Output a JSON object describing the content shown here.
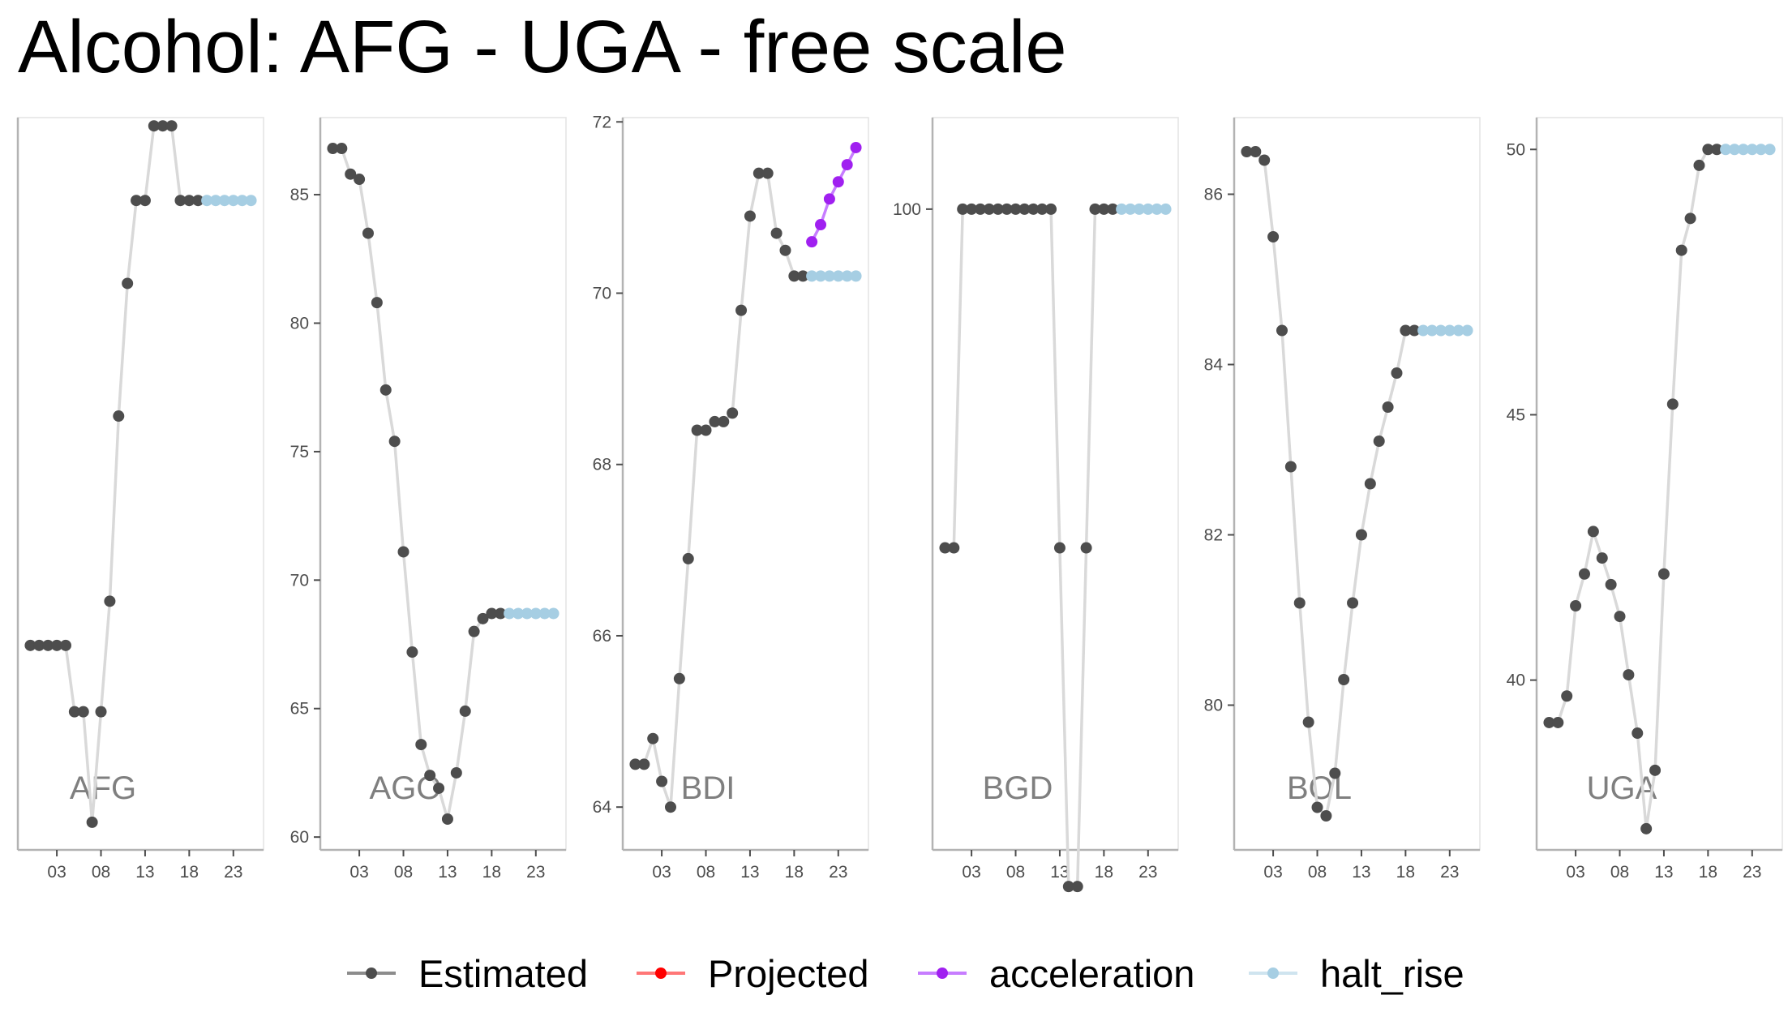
{
  "chart_data": {
    "type": "line",
    "title": "Alcohol: AFG - UGA - free scale",
    "legend": {
      "placement": "bottom",
      "entries": [
        {
          "name": "Estimated",
          "color": "#4d4d4d"
        },
        {
          "name": "Projected",
          "color": "#ff0000"
        },
        {
          "name": "acceleration",
          "color": "#a020f0"
        },
        {
          "name": "halt_rise",
          "color": "#a6cee3"
        }
      ]
    },
    "line_color": "#d9d9d9",
    "x_ticks": [
      3,
      8,
      13,
      18,
      23
    ],
    "x_tick_labels": [
      "03",
      "08",
      "13",
      "18",
      "23"
    ],
    "panels": [
      {
        "label": "AFG",
        "ylim": [
          56.0,
          82.5
        ],
        "y_ticks": [],
        "y_tick_labels": [],
        "estimated": [
          [
            0,
            63.4
          ],
          [
            1,
            63.4
          ],
          [
            2,
            63.4
          ],
          [
            3,
            63.4
          ],
          [
            4,
            63.4
          ],
          [
            5,
            61.0
          ],
          [
            6,
            61.0
          ],
          [
            7,
            57.0
          ],
          [
            8,
            61.0
          ],
          [
            9,
            65.0
          ],
          [
            10,
            71.7
          ],
          [
            11,
            76.5
          ],
          [
            12,
            79.5
          ],
          [
            13,
            79.5
          ],
          [
            14,
            82.2
          ],
          [
            15,
            82.2
          ],
          [
            16,
            82.2
          ],
          [
            17,
            79.5
          ],
          [
            18,
            79.5
          ],
          [
            19,
            79.5
          ]
        ],
        "halt_rise": [
          [
            19,
            79.5
          ],
          [
            20,
            79.5
          ],
          [
            21,
            79.5
          ],
          [
            22,
            79.5
          ],
          [
            23,
            79.5
          ],
          [
            24,
            79.5
          ],
          [
            25,
            79.5
          ]
        ],
        "acceleration": []
      },
      {
        "label": "AGO",
        "ylim": [
          59.5,
          88.0
        ],
        "y_ticks": [
          60,
          65,
          70,
          75,
          80,
          85
        ],
        "y_tick_labels": [
          "60",
          "65",
          "70",
          "75",
          "80",
          "85"
        ],
        "estimated": [
          [
            0,
            86.8
          ],
          [
            1,
            86.8
          ],
          [
            2,
            85.8
          ],
          [
            3,
            85.6
          ],
          [
            4,
            83.5
          ],
          [
            5,
            80.8
          ],
          [
            6,
            77.4
          ],
          [
            7,
            75.4
          ],
          [
            8,
            71.1
          ],
          [
            9,
            67.2
          ],
          [
            10,
            63.6
          ],
          [
            11,
            62.4
          ],
          [
            12,
            61.9
          ],
          [
            13,
            60.7
          ],
          [
            14,
            62.5
          ],
          [
            15,
            64.9
          ],
          [
            16,
            68.0
          ],
          [
            17,
            68.5
          ],
          [
            18,
            68.7
          ],
          [
            19,
            68.7
          ]
        ],
        "halt_rise": [
          [
            19,
            68.7
          ],
          [
            20,
            68.7
          ],
          [
            21,
            68.7
          ],
          [
            22,
            68.7
          ],
          [
            23,
            68.7
          ],
          [
            24,
            68.7
          ],
          [
            25,
            68.7
          ]
        ],
        "acceleration": []
      },
      {
        "label": "BDI",
        "ylim": [
          63.5,
          72.05
        ],
        "y_ticks": [
          64,
          66,
          68,
          70,
          72
        ],
        "y_tick_labels": [
          "64",
          "66",
          "68",
          "70",
          "72"
        ],
        "estimated": [
          [
            0,
            64.5
          ],
          [
            1,
            64.5
          ],
          [
            2,
            64.8
          ],
          [
            3,
            64.3
          ],
          [
            4,
            64.0
          ],
          [
            5,
            65.5
          ],
          [
            6,
            66.9
          ],
          [
            7,
            68.4
          ],
          [
            8,
            68.4
          ],
          [
            9,
            68.5
          ],
          [
            10,
            68.5
          ],
          [
            11,
            68.6
          ],
          [
            12,
            69.8
          ],
          [
            13,
            70.9
          ],
          [
            14,
            71.4
          ],
          [
            15,
            71.4
          ],
          [
            16,
            70.7
          ],
          [
            17,
            70.5
          ],
          [
            18,
            70.2
          ],
          [
            19,
            70.2
          ]
        ],
        "halt_rise": [
          [
            19,
            70.2
          ],
          [
            20,
            70.2
          ],
          [
            21,
            70.2
          ],
          [
            22,
            70.2
          ],
          [
            23,
            70.2
          ],
          [
            24,
            70.2
          ],
          [
            25,
            70.2
          ]
        ],
        "acceleration": [
          [
            20,
            70.6
          ],
          [
            21,
            70.8
          ],
          [
            22,
            71.1
          ],
          [
            23,
            71.3
          ],
          [
            24,
            71.5
          ],
          [
            25,
            71.7
          ]
        ]
      },
      {
        "label": "BGD",
        "ylim": [
          93.0,
          101.0
        ],
        "y_ticks": [
          100
        ],
        "y_tick_labels": [
          "100"
        ],
        "estimated": [
          [
            0,
            96.3
          ],
          [
            1,
            96.3
          ],
          [
            2,
            100.0
          ],
          [
            3,
            100.0
          ],
          [
            4,
            100.0
          ],
          [
            5,
            100.0
          ],
          [
            6,
            100.0
          ],
          [
            7,
            100.0
          ],
          [
            8,
            100.0
          ],
          [
            9,
            100.0
          ],
          [
            10,
            100.0
          ],
          [
            11,
            100.0
          ],
          [
            12,
            100.0
          ],
          [
            13,
            96.3
          ],
          [
            14,
            92.6
          ],
          [
            15,
            92.6
          ],
          [
            16,
            96.3
          ],
          [
            17,
            100.0
          ],
          [
            18,
            100.0
          ],
          [
            19,
            100.0
          ]
        ],
        "halt_rise": [
          [
            19,
            100.0
          ],
          [
            20,
            100.0
          ],
          [
            21,
            100.0
          ],
          [
            22,
            100.0
          ],
          [
            23,
            100.0
          ],
          [
            24,
            100.0
          ],
          [
            25,
            100.0
          ]
        ],
        "acceleration": []
      },
      {
        "label": "BOL",
        "ylim": [
          78.3,
          86.9
        ],
        "y_ticks": [
          80,
          82,
          84,
          86
        ],
        "y_tick_labels": [
          "80",
          "82",
          "84",
          "86"
        ],
        "estimated": [
          [
            0,
            86.5
          ],
          [
            1,
            86.5
          ],
          [
            2,
            86.4
          ],
          [
            3,
            85.5
          ],
          [
            4,
            84.4
          ],
          [
            5,
            82.8
          ],
          [
            6,
            81.2
          ],
          [
            7,
            79.8
          ],
          [
            8,
            78.8
          ],
          [
            9,
            78.7
          ],
          [
            10,
            79.2
          ],
          [
            11,
            80.3
          ],
          [
            12,
            81.2
          ],
          [
            13,
            82.0
          ],
          [
            14,
            82.6
          ],
          [
            15,
            83.1
          ],
          [
            16,
            83.5
          ],
          [
            17,
            83.9
          ],
          [
            18,
            84.4
          ],
          [
            19,
            84.4
          ]
        ],
        "halt_rise": [
          [
            19,
            84.4
          ],
          [
            20,
            84.4
          ],
          [
            21,
            84.4
          ],
          [
            22,
            84.4
          ],
          [
            23,
            84.4
          ],
          [
            24,
            84.4
          ],
          [
            25,
            84.4
          ]
        ],
        "acceleration": []
      },
      {
        "label": "UGA",
        "ylim": [
          36.8,
          50.6
        ],
        "y_ticks": [
          40,
          45,
          50
        ],
        "y_tick_labels": [
          "40",
          "45",
          "50"
        ],
        "estimated": [
          [
            0,
            39.2
          ],
          [
            1,
            39.2
          ],
          [
            2,
            39.7
          ],
          [
            3,
            41.4
          ],
          [
            4,
            42.0
          ],
          [
            5,
            42.8
          ],
          [
            6,
            42.3
          ],
          [
            7,
            41.8
          ],
          [
            8,
            41.2
          ],
          [
            9,
            40.1
          ],
          [
            10,
            39.0
          ],
          [
            11,
            37.2
          ],
          [
            12,
            38.3
          ],
          [
            13,
            42.0
          ],
          [
            14,
            45.2
          ],
          [
            15,
            48.1
          ],
          [
            16,
            48.7
          ],
          [
            17,
            49.7
          ],
          [
            18,
            50.0
          ],
          [
            19,
            50.0
          ]
        ],
        "halt_rise": [
          [
            19,
            50.0
          ],
          [
            20,
            50.0
          ],
          [
            21,
            50.0
          ],
          [
            22,
            50.0
          ],
          [
            23,
            50.0
          ],
          [
            24,
            50.0
          ],
          [
            25,
            50.0
          ]
        ],
        "acceleration": []
      }
    ]
  }
}
